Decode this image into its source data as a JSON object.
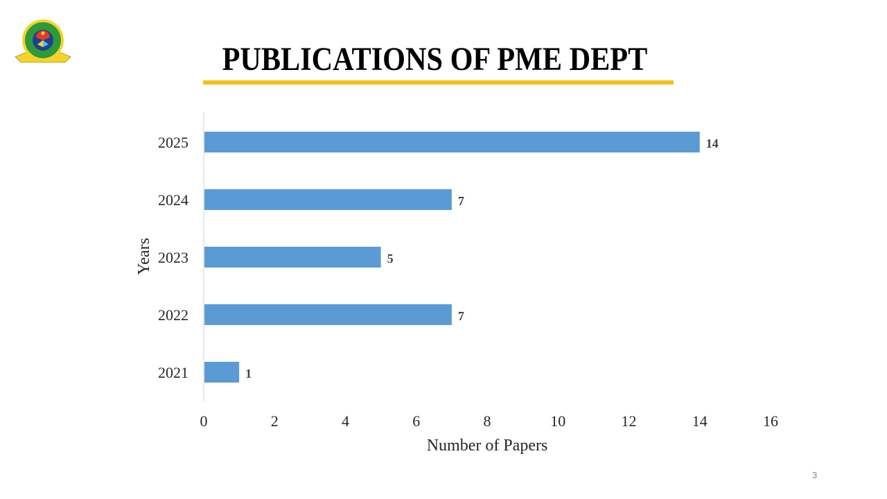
{
  "slide": {
    "title": "PUBLICATIONS OF PME DEPT",
    "page_number": "3",
    "accent_color": "#F5BE19",
    "logo": {
      "text_ring": "MILITARY INSTITUTE OF SCIENCE AND TECHNOLOGY",
      "initials": "M I S T",
      "country": "BANGLADESH",
      "motto": "TECHNOLOGY FOR ADVANCEMENT"
    }
  },
  "chart_data": {
    "type": "bar",
    "orientation": "horizontal",
    "categories": [
      "2021",
      "2022",
      "2023",
      "2024",
      "2025"
    ],
    "values": [
      1,
      7,
      5,
      7,
      14
    ],
    "data_labels": [
      "1",
      "7",
      "5",
      "7",
      "14"
    ],
    "xlabel": "Number of Papers",
    "ylabel": "Years",
    "xlim": [
      0,
      16
    ],
    "xticks": [
      "0",
      "2",
      "4",
      "6",
      "8",
      "10",
      "12",
      "14",
      "16"
    ],
    "grid": false,
    "legend": "none",
    "bar_color": "#5B9BD5"
  }
}
